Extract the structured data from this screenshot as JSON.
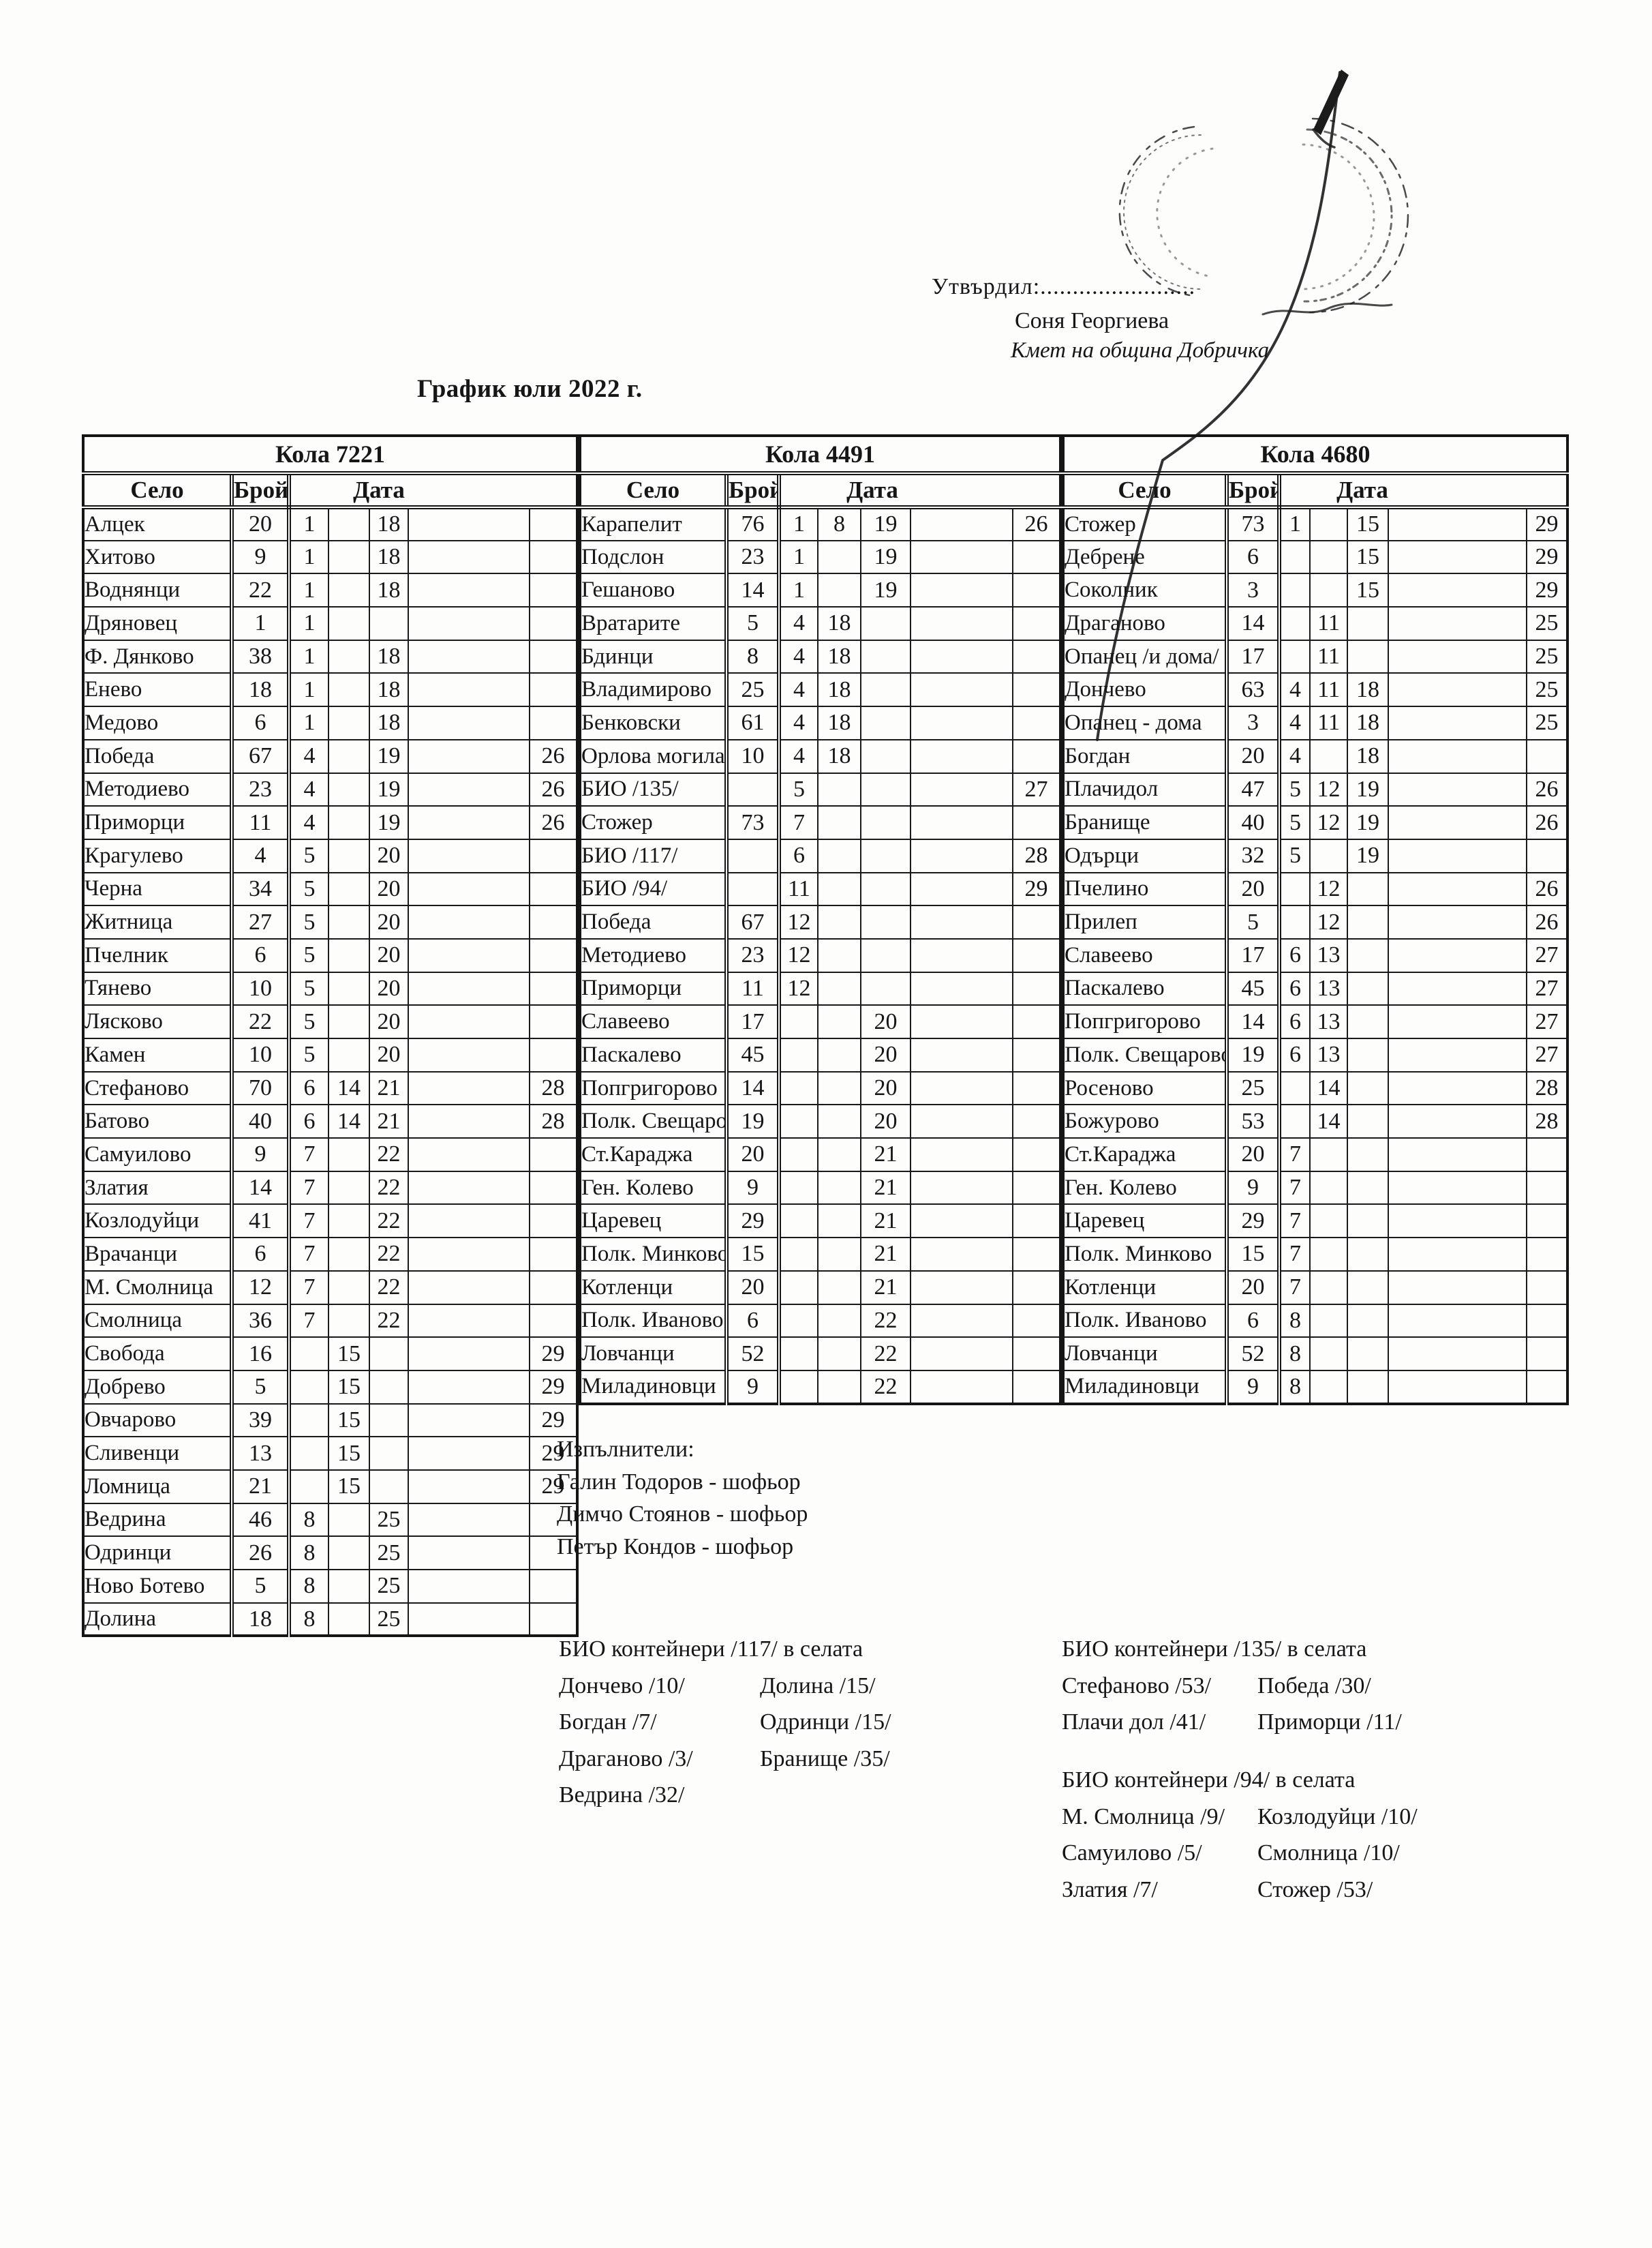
{
  "header": {
    "approval_label": "Утвърдил:........................",
    "approver_name": "Соня Георгиева",
    "approver_title": "Кмет  на община Добричка",
    "doc_title": "График юли 2022 г."
  },
  "ink_color": "#1a1a1a",
  "paper_color": "#fdfdfc",
  "table": {
    "col_headers": {
      "village": "Село",
      "count": "Брой",
      "date": "Дата"
    },
    "groups": [
      {
        "name": "Кола 7221",
        "rows": [
          [
            "Алцек",
            "20",
            "1",
            "",
            "18",
            ""
          ],
          [
            "Хитово",
            "9",
            "1",
            "",
            "18",
            ""
          ],
          [
            "Воднянци",
            "22",
            "1",
            "",
            "18",
            ""
          ],
          [
            "Дряновец",
            "1",
            "1",
            "",
            "",
            ""
          ],
          [
            "Ф. Дянково",
            "38",
            "1",
            "",
            "18",
            ""
          ],
          [
            "Енево",
            "18",
            "1",
            "",
            "18",
            ""
          ],
          [
            "Медово",
            "6",
            "1",
            "",
            "18",
            ""
          ],
          [
            "Победа",
            "67",
            "4",
            "",
            "19",
            "26"
          ],
          [
            "Методиево",
            "23",
            "4",
            "",
            "19",
            "26"
          ],
          [
            "Приморци",
            "11",
            "4",
            "",
            "19",
            "26"
          ],
          [
            "Крагулево",
            "4",
            "5",
            "",
            "20",
            ""
          ],
          [
            "Черна",
            "34",
            "5",
            "",
            "20",
            ""
          ],
          [
            "Житница",
            "27",
            "5",
            "",
            "20",
            ""
          ],
          [
            "Пчелник",
            "6",
            "5",
            "",
            "20",
            ""
          ],
          [
            "Тянево",
            "10",
            "5",
            "",
            "20",
            ""
          ],
          [
            "Лясково",
            "22",
            "5",
            "",
            "20",
            ""
          ],
          [
            "Камен",
            "10",
            "5",
            "",
            "20",
            ""
          ],
          [
            "Стефаново",
            "70",
            "6",
            "14",
            "21",
            "28"
          ],
          [
            "Батово",
            "40",
            "6",
            "14",
            "21",
            "28"
          ],
          [
            "Самуилово",
            "9",
            "7",
            "",
            "22",
            ""
          ],
          [
            "Златия",
            "14",
            "7",
            "",
            "22",
            ""
          ],
          [
            "Козлодуйци",
            "41",
            "7",
            "",
            "22",
            ""
          ],
          [
            "Врачанци",
            "6",
            "7",
            "",
            "22",
            ""
          ],
          [
            "М. Смолница",
            "12",
            "7",
            "",
            "22",
            ""
          ],
          [
            "Смолница",
            "36",
            "7",
            "",
            "22",
            ""
          ],
          [
            "Свобода",
            "16",
            "",
            "15",
            "",
            "29"
          ],
          [
            "Добрево",
            "5",
            "",
            "15",
            "",
            "29"
          ],
          [
            "Овчарово",
            "39",
            "",
            "15",
            "",
            "29"
          ],
          [
            "Сливенци",
            "13",
            "",
            "15",
            "",
            "29"
          ],
          [
            "Ломница",
            "21",
            "",
            "15",
            "",
            "29"
          ],
          [
            "Ведрина",
            "46",
            "8",
            "",
            "25",
            ""
          ],
          [
            "Одринци",
            "26",
            "8",
            "",
            "25",
            ""
          ],
          [
            "Ново Ботево",
            "5",
            "8",
            "",
            "25",
            ""
          ],
          [
            "Долина",
            "18",
            "8",
            "",
            "25",
            ""
          ]
        ]
      },
      {
        "name": "Кола 4491",
        "rows": [
          [
            "Карапелит",
            "76",
            "1",
            "8",
            "19",
            "26"
          ],
          [
            "Подслон",
            "23",
            "1",
            "",
            "19",
            ""
          ],
          [
            "Гешаново",
            "14",
            "1",
            "",
            "19",
            ""
          ],
          [
            "Вратарите",
            "5",
            "4",
            "18",
            "",
            ""
          ],
          [
            "Бдинци",
            "8",
            "4",
            "18",
            "",
            ""
          ],
          [
            "Владимирово",
            "25",
            "4",
            "18",
            "",
            ""
          ],
          [
            "Бенковски",
            "61",
            "4",
            "18",
            "",
            ""
          ],
          [
            "Орлова могила",
            "10",
            "4",
            "18",
            "",
            ""
          ],
          [
            "БИО /135/",
            "",
            "5",
            "",
            "",
            "27"
          ],
          [
            "Стожер",
            "73",
            "7",
            "",
            "",
            ""
          ],
          [
            "БИО /117/",
            "",
            "6",
            "",
            "",
            "28"
          ],
          [
            "БИО /94/",
            "",
            "11",
            "",
            "",
            "29"
          ],
          [
            "Победа",
            "67",
            "12",
            "",
            "",
            ""
          ],
          [
            "Методиево",
            "23",
            "12",
            "",
            "",
            ""
          ],
          [
            "Приморци",
            "11",
            "12",
            "",
            "",
            ""
          ],
          [
            "Славеево",
            "17",
            "",
            "",
            "20",
            ""
          ],
          [
            "Паскалево",
            "45",
            "",
            "",
            "20",
            ""
          ],
          [
            "Попгригорово",
            "14",
            "",
            "",
            "20",
            ""
          ],
          [
            "Полк. Свещарово",
            "19",
            "",
            "",
            "20",
            ""
          ],
          [
            "Ст.Караджа",
            "20",
            "",
            "",
            "21",
            ""
          ],
          [
            "Ген. Колево",
            "9",
            "",
            "",
            "21",
            ""
          ],
          [
            "Царевец",
            "29",
            "",
            "",
            "21",
            ""
          ],
          [
            "Полк. Минково",
            "15",
            "",
            "",
            "21",
            ""
          ],
          [
            "Котленци",
            "20",
            "",
            "",
            "21",
            ""
          ],
          [
            "Полк. Иваново",
            "6",
            "",
            "",
            "22",
            ""
          ],
          [
            "Ловчанци",
            "52",
            "",
            "",
            "22",
            ""
          ],
          [
            "Миладиновци",
            "9",
            "",
            "",
            "22",
            ""
          ]
        ]
      },
      {
        "name": "Кола 4680",
        "rows": [
          [
            "Стожер",
            "73",
            "1",
            "",
            "15",
            "29"
          ],
          [
            "Дебрене",
            "6",
            "",
            "",
            "15",
            "29"
          ],
          [
            "Соколник",
            "3",
            "",
            "",
            "15",
            "29"
          ],
          [
            "Драганово",
            "14",
            "",
            "11",
            "",
            "25"
          ],
          [
            "Опанец /и дома/",
            "17",
            "",
            "11",
            "",
            "25"
          ],
          [
            "Дончево",
            "63",
            "4",
            "11",
            "18",
            "25"
          ],
          [
            "Опанец - дома",
            "3",
            "4",
            "11",
            "18",
            "25"
          ],
          [
            "Богдан",
            "20",
            "4",
            "",
            "18",
            ""
          ],
          [
            "Плачидол",
            "47",
            "5",
            "12",
            "19",
            "26"
          ],
          [
            "Бранище",
            "40",
            "5",
            "12",
            "19",
            "26"
          ],
          [
            "Одърци",
            "32",
            "5",
            "",
            "19",
            ""
          ],
          [
            "Пчелино",
            "20",
            "",
            "12",
            "",
            "26"
          ],
          [
            "Прилеп",
            "5",
            "",
            "12",
            "",
            "26"
          ],
          [
            "Славеево",
            "17",
            "6",
            "13",
            "",
            "27"
          ],
          [
            "Паскалево",
            "45",
            "6",
            "13",
            "",
            "27"
          ],
          [
            "Попгригорово",
            "14",
            "6",
            "13",
            "",
            "27"
          ],
          [
            "Полк. Свещарово",
            "19",
            "6",
            "13",
            "",
            "27"
          ],
          [
            "Росеново",
            "25",
            "",
            "14",
            "",
            "28"
          ],
          [
            "Божурово",
            "53",
            "",
            "14",
            "",
            "28"
          ],
          [
            "Ст.Караджа",
            "20",
            "7",
            "",
            "",
            ""
          ],
          [
            "Ген. Колево",
            "9",
            "7",
            "",
            "",
            ""
          ],
          [
            "Царевец",
            "29",
            "7",
            "",
            "",
            ""
          ],
          [
            "Полк. Минково",
            "15",
            "7",
            "",
            "",
            ""
          ],
          [
            "Котленци",
            "20",
            "7",
            "",
            "",
            ""
          ],
          [
            "Полк. Иваново",
            "6",
            "8",
            "",
            "",
            ""
          ],
          [
            "Ловчанци",
            "52",
            "8",
            "",
            "",
            ""
          ],
          [
            "Миладиновци",
            "9",
            "8",
            "",
            "",
            ""
          ]
        ]
      }
    ]
  },
  "executors": {
    "label": "Изпълнители:",
    "names": [
      "Галин Тодоров - шофьор",
      "Димчо Стоянов - шофьор",
      "Петър Кондов - шофьор"
    ]
  },
  "bio_sections": [
    {
      "title": "БИО контейнери /117/ в селата",
      "left": [
        "Дончево /10/",
        "Богдан /7/",
        "Драганово /3/",
        "Ведрина /32/"
      ],
      "right": [
        "Долина /15/",
        "Одринци /15/",
        "Бранище /35/"
      ]
    },
    {
      "title": "БИО контейнери /135/ в селата",
      "left": [
        "Стефаново /53/",
        "Плачи дол /41/"
      ],
      "right": [
        "Победа /30/",
        "Приморци /11/"
      ]
    },
    {
      "title": "БИО контейнери /94/ в селата",
      "left": [
        "М. Смолница /9/",
        "Самуилово /5/",
        "Златия /7/"
      ],
      "right": [
        "Козлодуйци /10/",
        "Смолница /10/",
        "Стожер /53/"
      ]
    }
  ]
}
